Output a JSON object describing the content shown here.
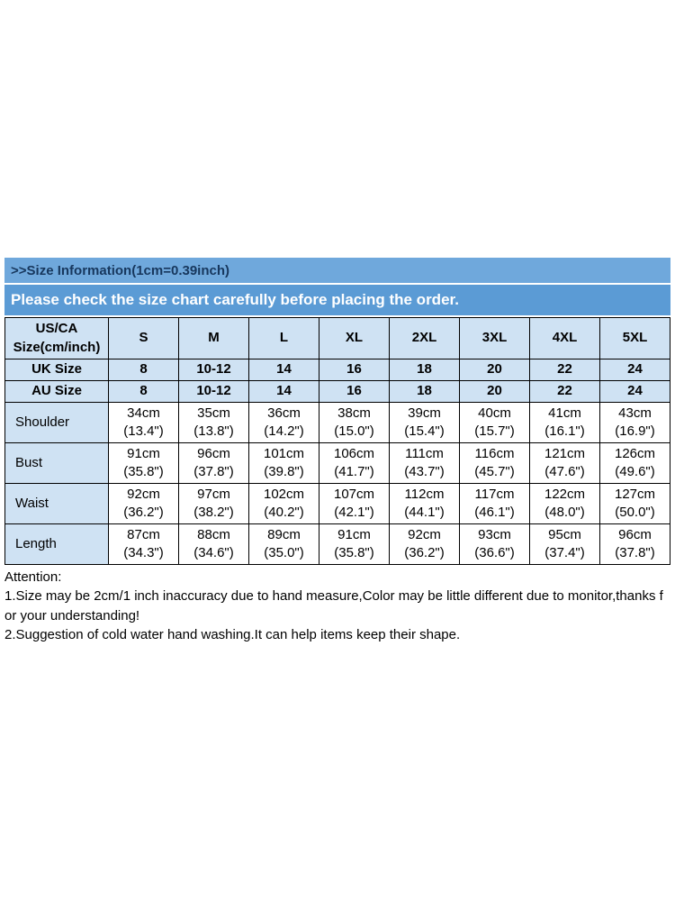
{
  "colors": {
    "title_bar_bg": "#6fa8dc",
    "title_text": "#17375d",
    "notice_bar_bg": "#5b9bd5",
    "notice_text": "#ffffff",
    "header_cell_bg": "#cfe2f3",
    "data_cell_bg": "#ffffff",
    "border": "#000000",
    "body_text": "#000000",
    "page_bg": "#ffffff"
  },
  "header": {
    "title": ">>Size Information(1cm=0.39inch)",
    "notice": "Please check the size chart carefully before placing the order."
  },
  "table": {
    "corner": "US/CA\nSize(cm/inch)",
    "sizes": [
      "S",
      "M",
      "L",
      "XL",
      "2XL",
      "3XL",
      "4XL",
      "5XL"
    ],
    "uk": {
      "label": "UK Size",
      "values": [
        "8",
        "10-12",
        "14",
        "16",
        "18",
        "20",
        "22",
        "24"
      ]
    },
    "au": {
      "label": "AU Size",
      "values": [
        "8",
        "10-12",
        "14",
        "16",
        "18",
        "20",
        "22",
        "24"
      ]
    },
    "measures": [
      {
        "label": "Shoulder",
        "values": [
          "34cm\n(13.4\")",
          "35cm\n(13.8\")",
          "36cm\n(14.2\")",
          "38cm\n(15.0\")",
          "39cm\n(15.4\")",
          "40cm\n(15.7\")",
          "41cm\n(16.1\")",
          "43cm\n(16.9\")"
        ]
      },
      {
        "label": "Bust",
        "values": [
          "91cm\n(35.8\")",
          "96cm\n(37.8\")",
          "101cm\n(39.8\")",
          "106cm\n(41.7\")",
          "111cm\n(43.7\")",
          "116cm\n(45.7\")",
          "121cm\n(47.6\")",
          "126cm\n(49.6\")"
        ]
      },
      {
        "label": "Waist",
        "values": [
          "92cm\n(36.2\")",
          "97cm\n(38.2\")",
          "102cm\n(40.2\")",
          "107cm\n(42.1\")",
          "112cm\n(44.1\")",
          "117cm\n(46.1\")",
          "122cm\n(48.0\")",
          "127cm\n(50.0\")"
        ]
      },
      {
        "label": "Length",
        "values": [
          "87cm\n(34.3\")",
          "88cm\n(34.6\")",
          "89cm\n(35.0\")",
          "91cm\n(35.8\")",
          "92cm\n(36.2\")",
          "93cm\n(36.6\")",
          "95cm\n(37.4\")",
          "96cm\n(37.8\")"
        ]
      }
    ]
  },
  "attention": {
    "title": "Attention:",
    "line1": "1.Size may be 2cm/1 inch inaccuracy due to hand measure,Color may be little different due to monitor,thanks for your understanding!",
    "line2": "2.Suggestion of cold water hand washing.It can help items keep their shape."
  },
  "chart_data": {
    "type": "table",
    "title": ">>Size Information(1cm=0.39inch)",
    "subtitle": "Please check the size chart carefully before placing the order.",
    "columns": [
      "US/CA Size(cm/inch)",
      "S",
      "M",
      "L",
      "XL",
      "2XL",
      "3XL",
      "4XL",
      "5XL"
    ],
    "rows": [
      [
        "UK Size",
        "8",
        "10-12",
        "14",
        "16",
        "18",
        "20",
        "22",
        "24"
      ],
      [
        "AU Size",
        "8",
        "10-12",
        "14",
        "16",
        "18",
        "20",
        "22",
        "24"
      ],
      [
        "Shoulder",
        "34cm (13.4\")",
        "35cm (13.8\")",
        "36cm (14.2\")",
        "38cm (15.0\")",
        "39cm (15.4\")",
        "40cm (15.7\")",
        "41cm (16.1\")",
        "43cm (16.9\")"
      ],
      [
        "Bust",
        "91cm (35.8\")",
        "96cm (37.8\")",
        "101cm (39.8\")",
        "106cm (41.7\")",
        "111cm (43.7\")",
        "116cm (45.7\")",
        "121cm (47.6\")",
        "126cm (49.6\")"
      ],
      [
        "Waist",
        "92cm (36.2\")",
        "97cm (38.2\")",
        "102cm (40.2\")",
        "107cm (42.1\")",
        "112cm (44.1\")",
        "117cm (46.1\")",
        "122cm (48.0\")",
        "127cm (50.0\")"
      ],
      [
        "Length",
        "87cm (34.3\")",
        "88cm (34.6\")",
        "89cm (35.0\")",
        "91cm (35.8\")",
        "92cm (36.2\")",
        "93cm (36.6\")",
        "95cm (37.4\")",
        "96cm (37.8\")"
      ]
    ]
  }
}
